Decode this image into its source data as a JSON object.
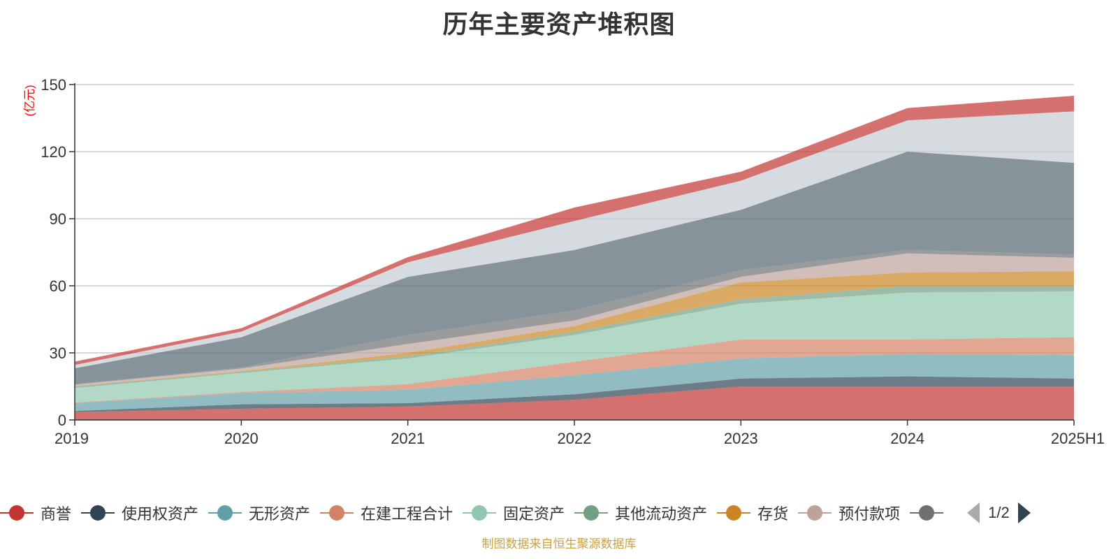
{
  "chart_data": {
    "type": "area",
    "stacked": true,
    "title": "历年主要资产堆积图",
    "unit_label": "(亿元)",
    "x": [
      "2019",
      "2020",
      "2021",
      "2022",
      "2023",
      "2024",
      "2025H1"
    ],
    "yticks": [
      0,
      30,
      60,
      90,
      120,
      150
    ],
    "ylim": [
      0,
      150
    ],
    "grid": true,
    "series": [
      {
        "name": "商誉",
        "color": "#c23531",
        "values": [
          3.5,
          5,
          6,
          9,
          15,
          15,
          15
        ]
      },
      {
        "name": "使用权资产",
        "color": "#2f4554",
        "values": [
          0.5,
          2,
          1.5,
          2.5,
          3.5,
          4.5,
          3.5
        ]
      },
      {
        "name": "无形资产",
        "color": "#61a0a8",
        "values": [
          3.5,
          5,
          6,
          8.5,
          9,
          10,
          10.5
        ]
      },
      {
        "name": "在建工程合计",
        "color": "#d48265",
        "values": [
          0.3,
          0.5,
          2.5,
          6,
          8.5,
          6.5,
          8
        ]
      },
      {
        "name": "固定资产",
        "color": "#91c7ae",
        "values": [
          6.5,
          8.5,
          11.5,
          12,
          16,
          21,
          20.5
        ]
      },
      {
        "name": "其他流动资产",
        "color": "#749f83",
        "values": [
          0.7,
          0.5,
          1,
          1.5,
          2,
          3,
          2.5
        ]
      },
      {
        "name": "存货",
        "color": "#ca8622",
        "values": [
          0.2,
          0.3,
          1.5,
          2.5,
          7.5,
          6,
          6.5
        ]
      },
      {
        "name": "预付款项",
        "color": "#bda29a",
        "values": [
          0.6,
          1.2,
          4,
          2.5,
          2.5,
          8.5,
          6
        ]
      },
      {
        "name": "",
        "color": "#6e7074",
        "values": [
          0.2,
          0.5,
          4,
          4.5,
          3,
          1.5,
          1.5
        ]
      },
      {
        "name": "",
        "color": "#546570",
        "values": [
          7.1,
          13.5,
          26,
          27,
          27,
          44,
          41
        ]
      },
      {
        "name": "",
        "color": "#c4ccd3",
        "values": [
          1.5,
          2.5,
          6.5,
          13,
          13,
          14,
          23
        ]
      },
      {
        "name": "",
        "color": "#c23531",
        "values": [
          1.5,
          1.5,
          2.3,
          6,
          4,
          5.5,
          7
        ]
      }
    ],
    "legend": {
      "position": "bottom",
      "visible_items": [
        {
          "name": "商誉",
          "color": "#c23531"
        },
        {
          "name": "使用权资产",
          "color": "#2f4554"
        },
        {
          "name": "无形资产",
          "color": "#61a0a8"
        },
        {
          "name": "在建工程合计",
          "color": "#d48265"
        },
        {
          "name": "固定资产",
          "color": "#91c7ae"
        },
        {
          "name": "其他流动资产",
          "color": "#749f83"
        },
        {
          "name": "存货",
          "color": "#ca8622"
        },
        {
          "name": "预付款项",
          "color": "#bda29a"
        },
        {
          "name": "",
          "color": "#6e7074"
        }
      ],
      "page": "1/2"
    },
    "source_note": "制图数据来自恒生聚源数据库"
  }
}
